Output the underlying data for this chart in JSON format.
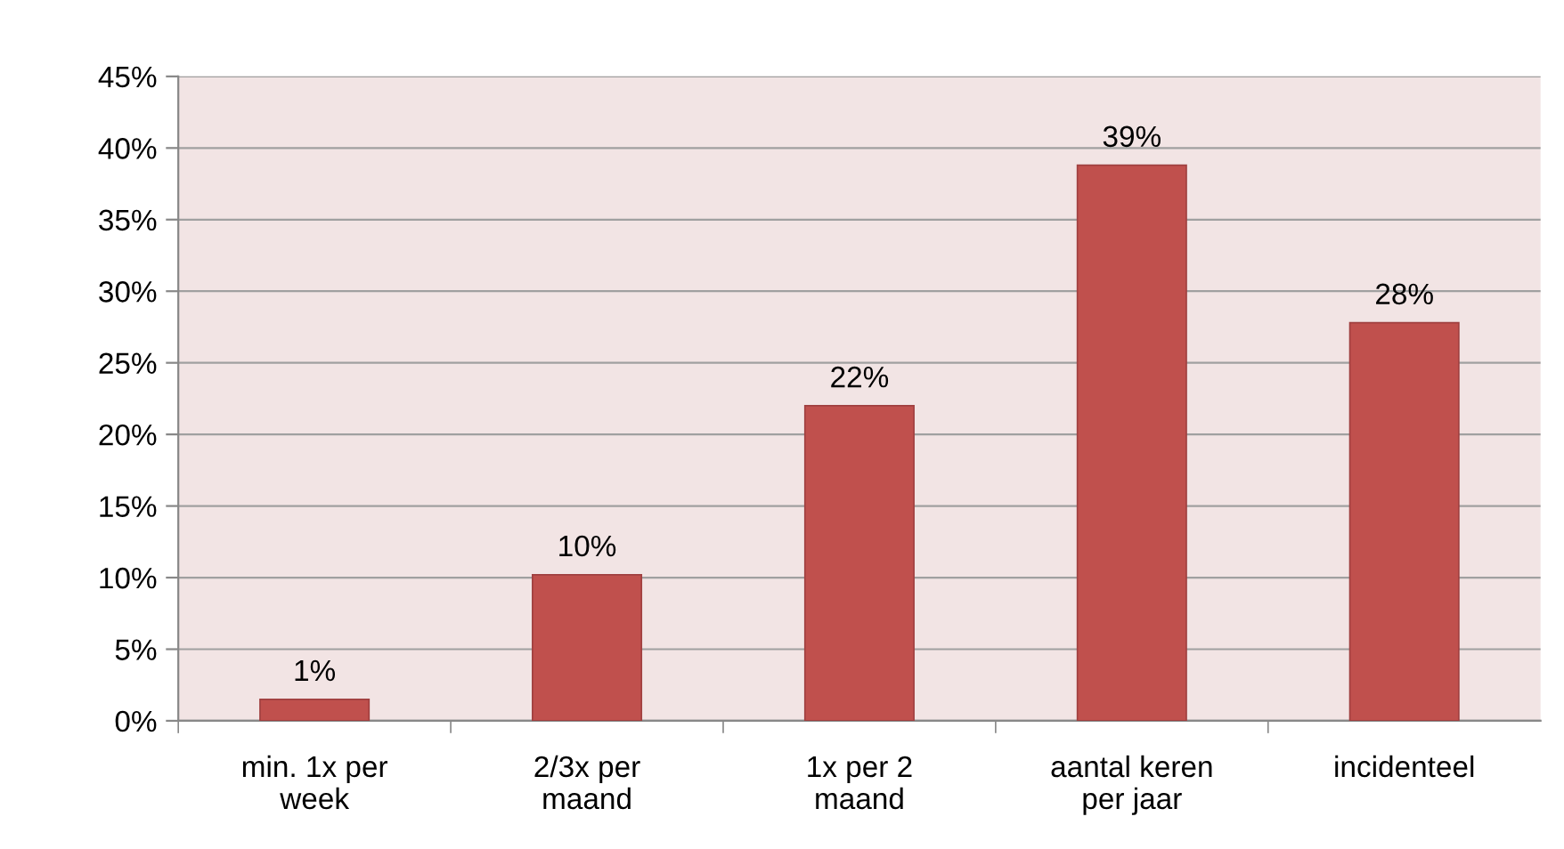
{
  "chart_data": {
    "type": "bar",
    "categories": [
      "min. 1x per\nweek",
      "2/3x per\nmaand",
      "1x per 2\nmaand",
      "aantal keren\nper jaar",
      "incidenteel"
    ],
    "values": [
      1.5,
      10.2,
      22,
      38.8,
      27.8
    ],
    "value_labels": [
      "1%",
      "10%",
      "22%",
      "39%",
      "28%"
    ],
    "color": "#c0504d",
    "ylim": [
      0,
      45
    ],
    "yticks": [
      {
        "value": 0,
        "label": "0%"
      },
      {
        "value": 5,
        "label": "5%"
      },
      {
        "value": 10,
        "label": "10%"
      },
      {
        "value": 15,
        "label": "15%"
      },
      {
        "value": 20,
        "label": "20%"
      },
      {
        "value": 25,
        "label": "25%"
      },
      {
        "value": 30,
        "label": "30%"
      },
      {
        "value": 35,
        "label": "35%"
      },
      {
        "value": 40,
        "label": "40%"
      },
      {
        "value": 45,
        "label": "45%"
      }
    ],
    "grid": "y",
    "legend": false
  }
}
